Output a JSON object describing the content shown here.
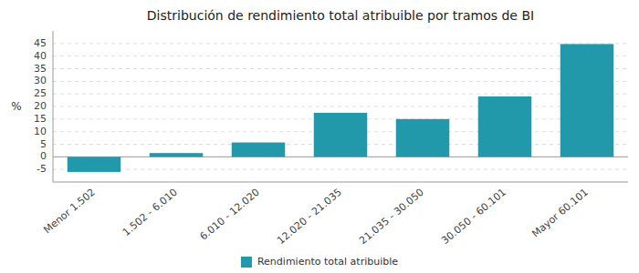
{
  "chart_data": {
    "type": "bar",
    "title": "Distribución de rendimiento total atribuible por tramos de BI",
    "categories": [
      "Menor 1.502",
      "1.502 - 6.010",
      "6.010 - 12.020",
      "12.020 - 21.035",
      "21.035 - 30.050",
      "30.050 - 60.101",
      "Mayor 60.101"
    ],
    "series": [
      {
        "name": "Rendimiento total atribuible",
        "color": "#2199aa",
        "values": [
          -6.0,
          1.5,
          5.7,
          17.5,
          15.0,
          24.0,
          44.8
        ]
      }
    ],
    "ylabel": "%",
    "ylim": [
      -10,
      50
    ],
    "yticks": [
      -5,
      0,
      5,
      10,
      15,
      20,
      25,
      30,
      35,
      40,
      45
    ],
    "grid": true,
    "legend": "bottom"
  }
}
